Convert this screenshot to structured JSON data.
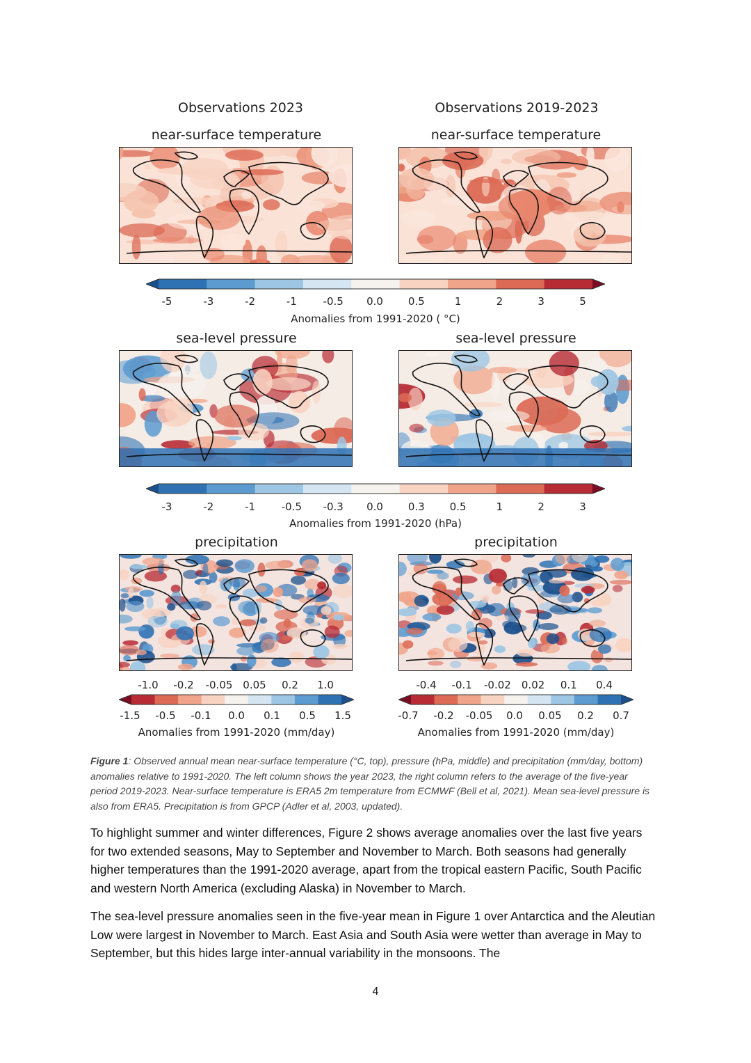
{
  "columns": {
    "left_title": "Observations 2023",
    "right_title": "Observations 2019-2023"
  },
  "panels": {
    "temperature": {
      "left": "near-surface temperature",
      "right": "near-surface temperature"
    },
    "pressure": {
      "left": "sea-level pressure",
      "right": "sea-level pressure"
    },
    "precipitation": {
      "left": "precipitation",
      "right": "precipitation"
    }
  },
  "colorbars": {
    "temperature": {
      "ticks": [
        "-5",
        "-3",
        "-2",
        "-1",
        "-0.5",
        "0.0",
        "0.5",
        "1",
        "2",
        "3",
        "5"
      ],
      "label": "Anomalies from 1991-2020 ( °C)",
      "colors": [
        "#1a4f8c",
        "#2f72b4",
        "#5b9bd0",
        "#9cc6e3",
        "#d5e6f2",
        "#f6f2ee",
        "#f8d3c2",
        "#f0a489",
        "#dc6a55",
        "#b72c34",
        "#7a0c23"
      ]
    },
    "pressure": {
      "ticks": [
        "-3",
        "-2",
        "-1",
        "-0.5",
        "-0.3",
        "0.0",
        "0.3",
        "0.5",
        "1",
        "2",
        "3"
      ],
      "label": "Anomalies from 1991-2020 (hPa)",
      "colors": [
        "#1a4f8c",
        "#2f72b4",
        "#5b9bd0",
        "#9cc6e3",
        "#d5e6f2",
        "#f6f2ee",
        "#f8d3c2",
        "#f0a489",
        "#dc6a55",
        "#b72c34",
        "#7a0c23"
      ]
    },
    "precip_left": {
      "ticks_top": [
        "-1.0",
        "-0.2",
        "-0.05",
        "0.05",
        "0.2",
        "1.0"
      ],
      "ticks_bottom": [
        "-1.5",
        "-0.5",
        "-0.1",
        "0.0",
        "0.1",
        "0.5",
        "1.5"
      ],
      "label": "Anomalies from 1991-2020 (mm/day)",
      "colors": [
        "#7a0c23",
        "#b72c34",
        "#dc6a55",
        "#f0a489",
        "#f8d3c2",
        "#f6f2ee",
        "#d5e6f2",
        "#9cc6e3",
        "#5b9bd0",
        "#2f72b4",
        "#1a4f8c"
      ]
    },
    "precip_right": {
      "ticks_top": [
        "-0.4",
        "-0.1",
        "-0.02",
        "0.02",
        "0.1",
        "0.4"
      ],
      "ticks_bottom": [
        "-0.7",
        "-0.2",
        "-0.05",
        "0.0",
        "0.05",
        "0.2",
        "0.7"
      ],
      "label": "Anomalies from 1991-2020 (mm/day)",
      "colors": [
        "#7a0c23",
        "#b72c34",
        "#dc6a55",
        "#f0a489",
        "#f8d3c2",
        "#f6f2ee",
        "#d5e6f2",
        "#9cc6e3",
        "#5b9bd0",
        "#2f72b4",
        "#1a4f8c"
      ]
    }
  },
  "caption": {
    "label": "Figure 1",
    "text": ": Observed annual mean near-surface temperature (°C, top), pressure (hPa, middle) and precipitation (mm/day, bottom) anomalies relative to 1991-2020. The left column shows the year 2023, the right column refers to the average of the five-year period 2019-2023. Near-surface temperature is ERA5 2m temperature from ECMWF (Bell et al, 2021). Mean sea-level pressure is also from ERA5. Precipitation is from GPCP (Adler et al, 2003, updated)."
  },
  "body": {
    "p1": "To highlight summer and winter differences, Figure 2 shows average anomalies over the last five years for two extended seasons, May to September and November to March. Both seasons had generally higher temperatures than the 1991-2020 average, apart from the tropical eastern Pacific, South Pacific and western North America (excluding Alaska) in November to March.",
    "p2": "The sea-level pressure anomalies seen in the five-year mean in Figure 1 over Antarctica and the Aleutian Low were largest in November to March. East Asia and South Asia were wetter than average in May to September, but this hides large inter-annual variability in the monsoons. The"
  },
  "page_number": "4"
}
